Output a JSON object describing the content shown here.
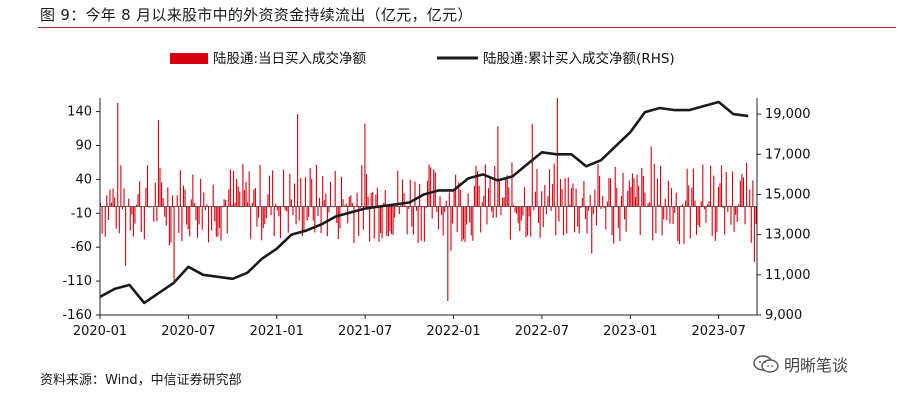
{
  "title": "图 9：今年 8 月以来股市中的外资资金持续流出（亿元，亿元）",
  "source": "资料来源：Wind，中信证券研究部",
  "watermark": "明晰笔谈",
  "chart_data": {
    "type": "bar",
    "legend": [
      {
        "name": "陆股通:当日买入成交净额",
        "marker": "bar",
        "color": "#d7000f"
      },
      {
        "name": "陆股通:累计买入成交净额(RHS)",
        "marker": "line",
        "color": "#1a1a1a"
      }
    ],
    "legend_position": "top-center",
    "x_ticks": [
      "2020-01",
      "2020-07",
      "2021-01",
      "2021-07",
      "2022-01",
      "2022-07",
      "2023-01",
      "2023-07"
    ],
    "left_axis": {
      "ticks": [
        140,
        90,
        40,
        -10,
        -60,
        -110,
        -160
      ],
      "range": [
        -160,
        160
      ]
    },
    "right_axis": {
      "ticks": [
        "19,000",
        "17,000",
        "15,000",
        "13,000",
        "11,000",
        "9,000"
      ],
      "range": [
        9000,
        19800
      ]
    },
    "daily_series": {
      "name": "陆股通:当日买入成交净额",
      "color": "#d7000f",
      "baseline": 0,
      "note": "daily bars clipped at the axis range (±160)"
    },
    "cumulative_series": {
      "name": "陆股通:累计买入成交净额(RHS)",
      "color": "#1a1a1a",
      "points": [
        [
          "2020-01",
          9900
        ],
        [
          "2020-02",
          10300
        ],
        [
          "2020-03",
          10500
        ],
        [
          "2020-04",
          9600
        ],
        [
          "2020-05",
          10100
        ],
        [
          "2020-06",
          10600
        ],
        [
          "2020-07",
          11400
        ],
        [
          "2020-08",
          11000
        ],
        [
          "2020-09",
          10900
        ],
        [
          "2020-10",
          10800
        ],
        [
          "2020-11",
          11100
        ],
        [
          "2020-12",
          11800
        ],
        [
          "2021-01",
          12300
        ],
        [
          "2021-02",
          13000
        ],
        [
          "2021-03",
          13200
        ],
        [
          "2021-04",
          13500
        ],
        [
          "2021-05",
          13900
        ],
        [
          "2021-06",
          14100
        ],
        [
          "2021-07",
          14300
        ],
        [
          "2021-08",
          14400
        ],
        [
          "2021-09",
          14500
        ],
        [
          "2021-10",
          14600
        ],
        [
          "2021-11",
          15000
        ],
        [
          "2021-12",
          15200
        ],
        [
          "2022-01",
          15200
        ],
        [
          "2022-02",
          15800
        ],
        [
          "2022-03",
          16000
        ],
        [
          "2022-04",
          15700
        ],
        [
          "2022-05",
          15900
        ],
        [
          "2022-06",
          16500
        ],
        [
          "2022-07",
          17100
        ],
        [
          "2022-08",
          17000
        ],
        [
          "2022-09",
          17000
        ],
        [
          "2022-10",
          16400
        ],
        [
          "2022-11",
          16700
        ],
        [
          "2022-12",
          17400
        ],
        [
          "2023-01",
          18100
        ],
        [
          "2023-02",
          19100
        ],
        [
          "2023-03",
          19300
        ],
        [
          "2023-04",
          19200
        ],
        [
          "2023-05",
          19200
        ],
        [
          "2023-06",
          19400
        ],
        [
          "2023-07",
          19600
        ],
        [
          "2023-08",
          19000
        ],
        [
          "2023-09",
          18900
        ]
      ]
    }
  }
}
